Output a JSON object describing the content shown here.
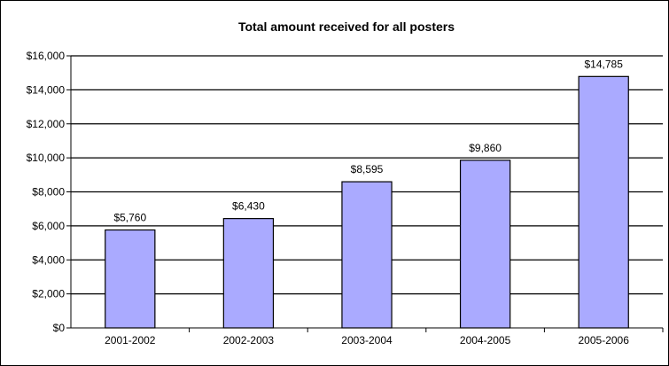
{
  "chart_data": {
    "type": "bar",
    "title": "Total amount received for all posters",
    "xlabel": "",
    "ylabel": "",
    "categories": [
      "2001-2002",
      "2002-2003",
      "2003-2004",
      "2004-2005",
      "2005-2006"
    ],
    "values": [
      5760,
      6430,
      8595,
      9860,
      14785
    ],
    "data_labels": [
      "$5,760",
      "$6,430",
      "$8,595",
      "$9,860",
      "$14,785"
    ],
    "ylim": [
      0,
      16000
    ],
    "y_ticks": [
      0,
      2000,
      4000,
      6000,
      8000,
      10000,
      12000,
      14000,
      16000
    ],
    "y_tick_labels": [
      "$0",
      "$2,000",
      "$4,000",
      "$6,000",
      "$8,000",
      "$10,000",
      "$12,000",
      "$14,000",
      "$16,000"
    ],
    "grid": true,
    "legend": "none",
    "bar_color": "#aaaaff",
    "bar_edge_color": "#000000",
    "gridline_color": "#000000"
  }
}
